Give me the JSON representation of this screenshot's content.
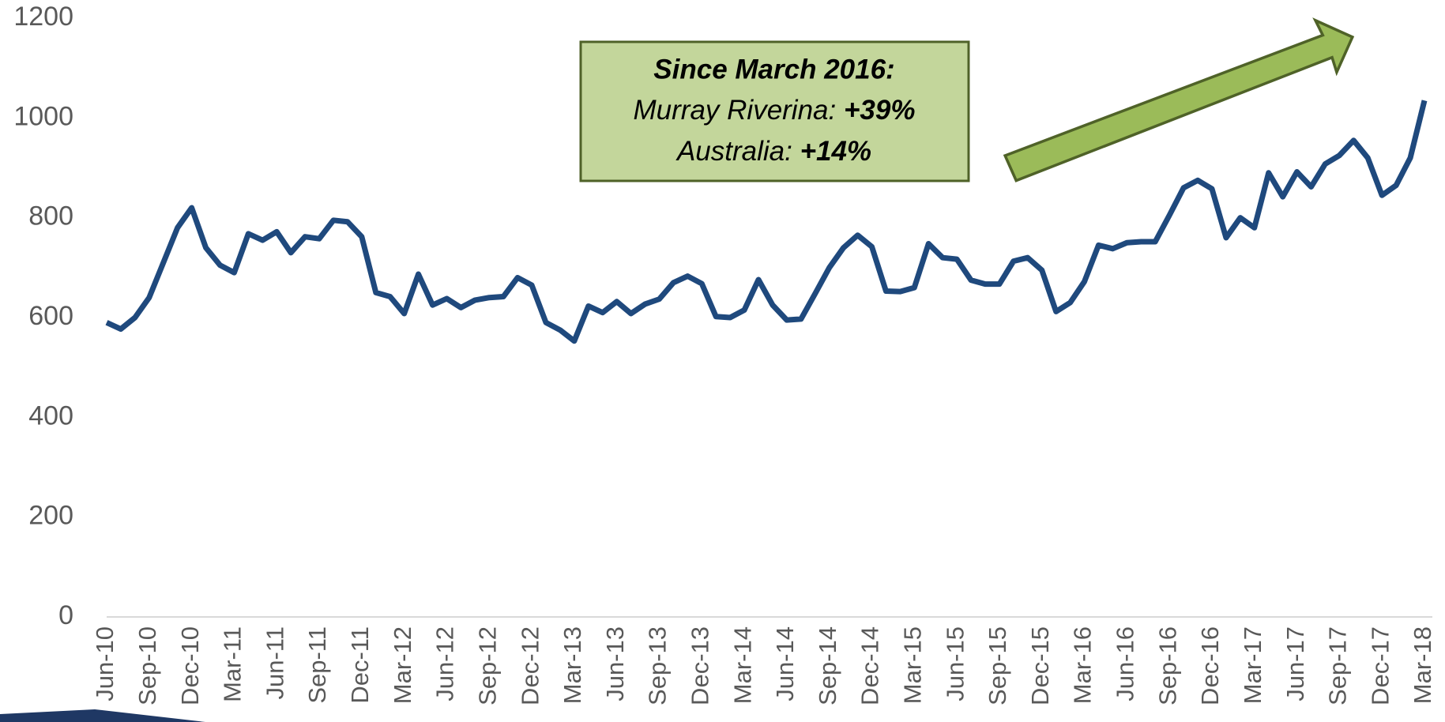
{
  "chart_data": {
    "type": "line",
    "categories": [
      "Jun-10",
      null,
      null,
      "Sep-10",
      null,
      null,
      "Dec-10",
      null,
      null,
      "Mar-11",
      null,
      null,
      "Jun-11",
      null,
      null,
      "Sep-11",
      null,
      null,
      "Dec-11",
      null,
      null,
      "Mar-12",
      null,
      null,
      "Jun-12",
      null,
      null,
      "Sep-12",
      null,
      null,
      "Dec-12",
      null,
      null,
      "Mar-13",
      null,
      null,
      "Jun-13",
      null,
      null,
      "Sep-13",
      null,
      null,
      "Dec-13",
      null,
      null,
      "Mar-14",
      null,
      null,
      "Jun-14",
      null,
      null,
      "Sep-14",
      null,
      null,
      "Dec-14",
      null,
      null,
      "Mar-15",
      null,
      null,
      "Jun-15",
      null,
      null,
      "Sep-15",
      null,
      null,
      "Dec-15",
      null,
      null,
      "Mar-16",
      null,
      null,
      "Jun-16",
      null,
      null,
      "Sep-16",
      null,
      null,
      "Dec-16",
      null,
      null,
      "Mar-17",
      null,
      null,
      "Jun-17",
      null,
      null,
      "Sep-17",
      null,
      null,
      "Dec-17",
      null,
      null,
      "Mar-18"
    ],
    "series": [
      {
        "color": "#1f497d",
        "values": [
          590,
          577,
          600,
          640,
          710,
          780,
          820,
          740,
          705,
          690,
          768,
          755,
          772,
          730,
          762,
          758,
          795,
          792,
          762,
          650,
          642,
          608,
          687,
          625,
          638,
          620,
          635,
          640,
          642,
          680,
          665,
          590,
          575,
          553,
          623,
          610,
          632,
          608,
          627,
          637,
          670,
          683,
          668,
          602,
          600,
          615,
          676,
          625,
          595,
          597,
          648,
          700,
          740,
          765,
          742,
          653,
          652,
          660,
          748,
          720,
          717,
          675,
          667,
          667,
          713,
          720,
          695,
          612,
          630,
          672,
          745,
          738,
          750,
          752,
          752,
          805,
          860,
          875,
          858,
          760,
          800,
          780,
          890,
          842,
          892,
          862,
          908,
          925,
          955,
          920,
          845,
          865,
          920,
          1035
        ]
      }
    ],
    "ylim": [
      0,
      1200
    ],
    "yticks": [
      0,
      200,
      400,
      600,
      800,
      1000,
      1200
    ],
    "grid": false,
    "annotation": {
      "heading": "Since March 2016:",
      "line1_label": "Murray Riverina: ",
      "line1_value": "+39%",
      "line2_label": "Australia: ",
      "line2_value": "+14%"
    }
  }
}
